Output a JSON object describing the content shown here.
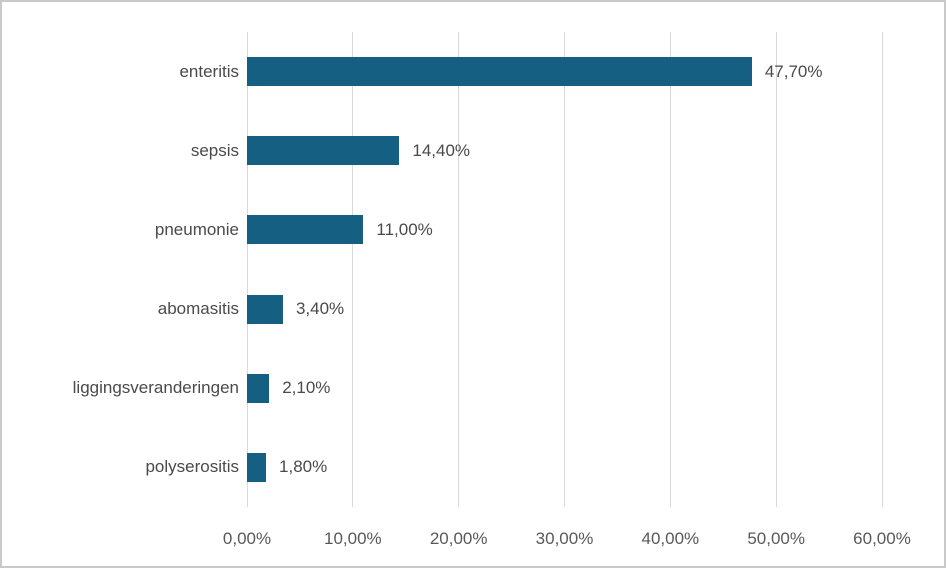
{
  "chart_data": {
    "type": "bar",
    "orientation": "horizontal",
    "title": "",
    "xlabel": "",
    "ylabel": "",
    "categories": [
      "enteritis",
      "sepsis",
      "pneumonie",
      "abomasitis",
      "liggingsveranderingen",
      "polyserositis"
    ],
    "values": [
      47.7,
      14.4,
      11.0,
      3.4,
      2.1,
      1.8
    ],
    "value_labels": [
      "47,70%",
      "14,40%",
      "11,00%",
      "3,40%",
      "2,10%",
      "1,80%"
    ],
    "xlim": [
      0,
      60
    ],
    "x_ticks": [
      0,
      10,
      20,
      30,
      40,
      50,
      60
    ],
    "x_tick_labels": [
      "0,00%",
      "10,00%",
      "20,00%",
      "30,00%",
      "40,00%",
      "50,00%",
      "60,00%"
    ],
    "grid": true,
    "legend": "none",
    "colors": {
      "bar_fill": "#156082",
      "gridline": "#d9d9d9",
      "tick_text": "#595959",
      "category_text": "#4a4a4a",
      "value_text": "#4a4a4a",
      "frame_border": "#c9c9c9",
      "background": "#ffffff"
    }
  }
}
